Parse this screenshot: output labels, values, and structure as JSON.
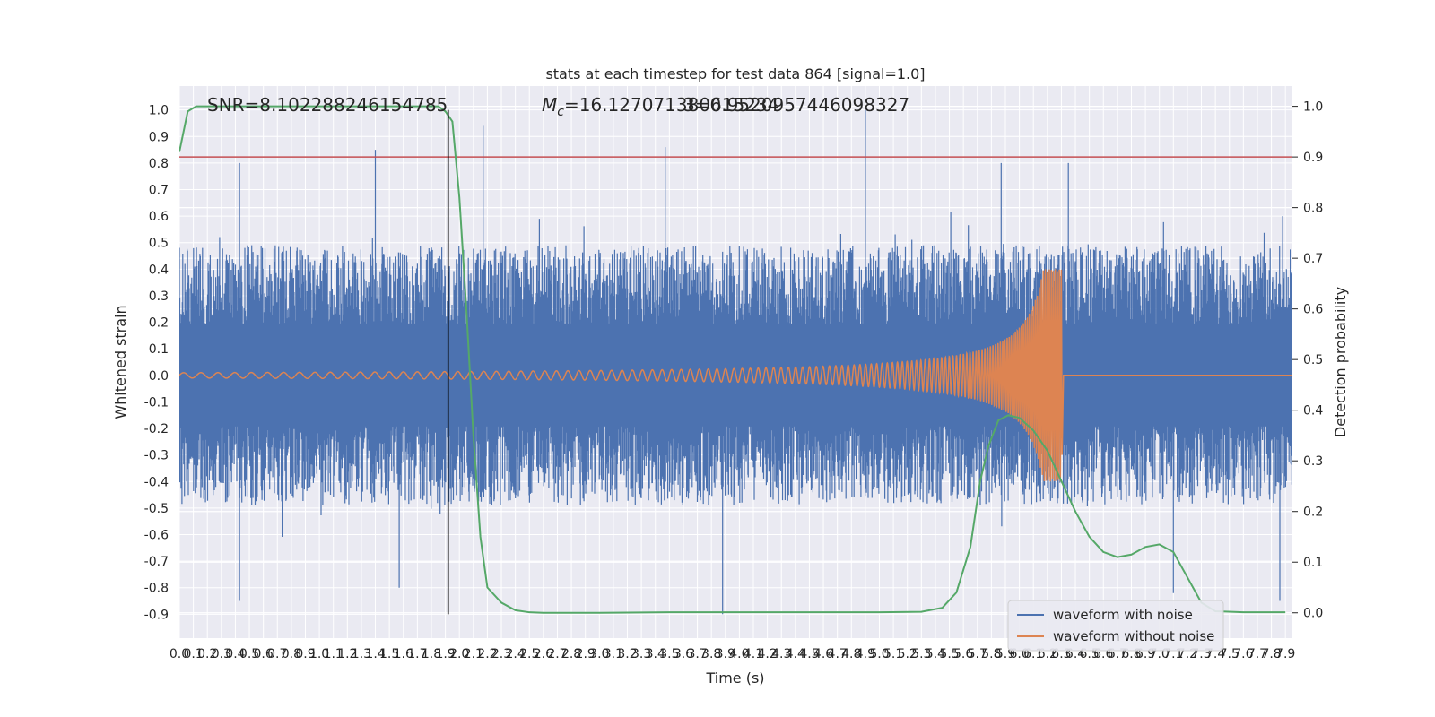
{
  "chart_data": {
    "type": "line",
    "title": "stats at each timestep for test data 864 [signal=1.0]",
    "xlabel": "Time (s)",
    "ylabel": "Whitened strain",
    "ylabel_right": "Detection probability",
    "xlim": [
      0.0,
      7.95
    ],
    "ylim": [
      -0.99,
      1.09
    ],
    "ylim_right": [
      -0.05,
      1.04
    ],
    "xticks": [
      "0.0",
      "0.1",
      "0.2",
      "0.3",
      "0.4",
      "0.5",
      "0.6",
      "0.7",
      "0.8",
      "0.9",
      "1.0",
      "1.1",
      "1.2",
      "1.3",
      "1.4",
      "1.5",
      "1.6",
      "1.7",
      "1.8",
      "1.9",
      "2.0",
      "2.1",
      "2.2",
      "2.3",
      "2.4",
      "2.5",
      "2.6",
      "2.7",
      "2.8",
      "2.9",
      "3.0",
      "3.1",
      "3.2",
      "3.3",
      "3.4",
      "3.5",
      "3.6",
      "3.7",
      "3.8",
      "3.9",
      "4.0",
      "4.1",
      "4.2",
      "4.3",
      "4.4",
      "4.5",
      "4.6",
      "4.7",
      "4.8",
      "4.9",
      "5.0",
      "5.1",
      "5.2",
      "5.3",
      "5.4",
      "5.5",
      "5.6",
      "5.7",
      "5.8",
      "5.9",
      "6.0",
      "6.1",
      "6.2",
      "6.3",
      "6.4",
      "6.5",
      "6.6",
      "6.7",
      "6.8",
      "6.9",
      "7.0",
      "7.1",
      "7.2",
      "7.3",
      "7.4",
      "7.5",
      "7.6",
      "7.7",
      "7.8",
      "7.9"
    ],
    "yticks": [
      "-0.9",
      "-0.8",
      "-0.7",
      "-0.6",
      "-0.5",
      "-0.4",
      "-0.3",
      "-0.2",
      "-0.1",
      "0.0",
      "0.1",
      "0.2",
      "0.3",
      "0.4",
      "0.5",
      "0.6",
      "0.7",
      "0.8",
      "0.9",
      "1.0"
    ],
    "yticks_right": [
      "0.0",
      "0.1",
      "0.2",
      "0.3",
      "0.4",
      "0.5",
      "0.6",
      "0.7",
      "0.8",
      "0.9",
      "1.0"
    ],
    "annotations": {
      "snr": "SNR=8.102288246154785",
      "mc_prefix": "M",
      "mc_sub": "c",
      "mc_value": "=16.127071380615234",
      "overlap": "3=0.9520957446098327"
    },
    "threshold": 0.9,
    "marker_time": 1.92,
    "peak_time": 6.3,
    "noise_envelope": {
      "typical_abs": 0.35,
      "spikes": [
        {
          "t": 0.43,
          "y": 0.8
        },
        {
          "t": 0.43,
          "y": -0.85
        },
        {
          "t": 1.4,
          "y": 0.85
        },
        {
          "t": 1.57,
          "y": -0.8
        },
        {
          "t": 2.17,
          "y": 0.94
        },
        {
          "t": 3.47,
          "y": 0.86
        },
        {
          "t": 3.88,
          "y": -0.9
        },
        {
          "t": 4.9,
          "y": 1.0
        },
        {
          "t": 5.87,
          "y": 0.8
        },
        {
          "t": 6.35,
          "y": 0.8
        },
        {
          "t": 7.1,
          "y": -0.82
        },
        {
          "t": 7.88,
          "y": 0.6
        },
        {
          "t": 7.86,
          "y": -0.85
        }
      ]
    },
    "series": [
      {
        "name": "waveform with noise",
        "color": "#4c72b0",
        "axis": "left"
      },
      {
        "name": "waveform without noise",
        "color": "#dd8452",
        "axis": "left",
        "chirp": {
          "start_amp": 0.01,
          "peak_amp": 0.4,
          "min_at_peak": -0.3,
          "start_freq": 8,
          "peak_freq": 70
        }
      },
      {
        "color": "#55a868",
        "axis": "right",
        "x": [
          0.0,
          0.06,
          0.12,
          0.2,
          0.4,
          0.6,
          0.8,
          1.0,
          1.2,
          1.4,
          1.6,
          1.75,
          1.85,
          1.9,
          1.95,
          2.0,
          2.05,
          2.1,
          2.15,
          2.2,
          2.3,
          2.4,
          2.5,
          2.6,
          2.8,
          3.0,
          3.5,
          4.0,
          4.5,
          5.0,
          5.3,
          5.45,
          5.55,
          5.65,
          5.72,
          5.78,
          5.85,
          5.92,
          6.0,
          6.1,
          6.2,
          6.3,
          6.4,
          6.5,
          6.6,
          6.7,
          6.8,
          6.9,
          7.0,
          7.1,
          7.2,
          7.3,
          7.4,
          7.6,
          7.8,
          7.9
        ],
        "y": [
          0.91,
          0.99,
          1.0,
          1.0,
          1.0,
          1.0,
          1.0,
          1.0,
          1.0,
          1.0,
          1.0,
          1.0,
          1.0,
          0.99,
          0.97,
          0.82,
          0.6,
          0.35,
          0.15,
          0.05,
          0.02,
          0.005,
          0.001,
          0.0,
          0.0,
          0.0,
          0.001,
          0.001,
          0.001,
          0.001,
          0.002,
          0.01,
          0.04,
          0.13,
          0.26,
          0.33,
          0.38,
          0.39,
          0.385,
          0.36,
          0.32,
          0.26,
          0.2,
          0.15,
          0.12,
          0.11,
          0.115,
          0.13,
          0.135,
          0.12,
          0.07,
          0.02,
          0.003,
          0.001,
          0.001,
          0.001
        ]
      },
      {
        "color": "#c44e52",
        "axis": "right",
        "type": "hline",
        "y": 0.9
      },
      {
        "color": "#000000",
        "axis": "left",
        "type": "vline",
        "x": 1.92
      }
    ],
    "legend": {
      "placement": "bottom-right"
    },
    "grid": true
  }
}
